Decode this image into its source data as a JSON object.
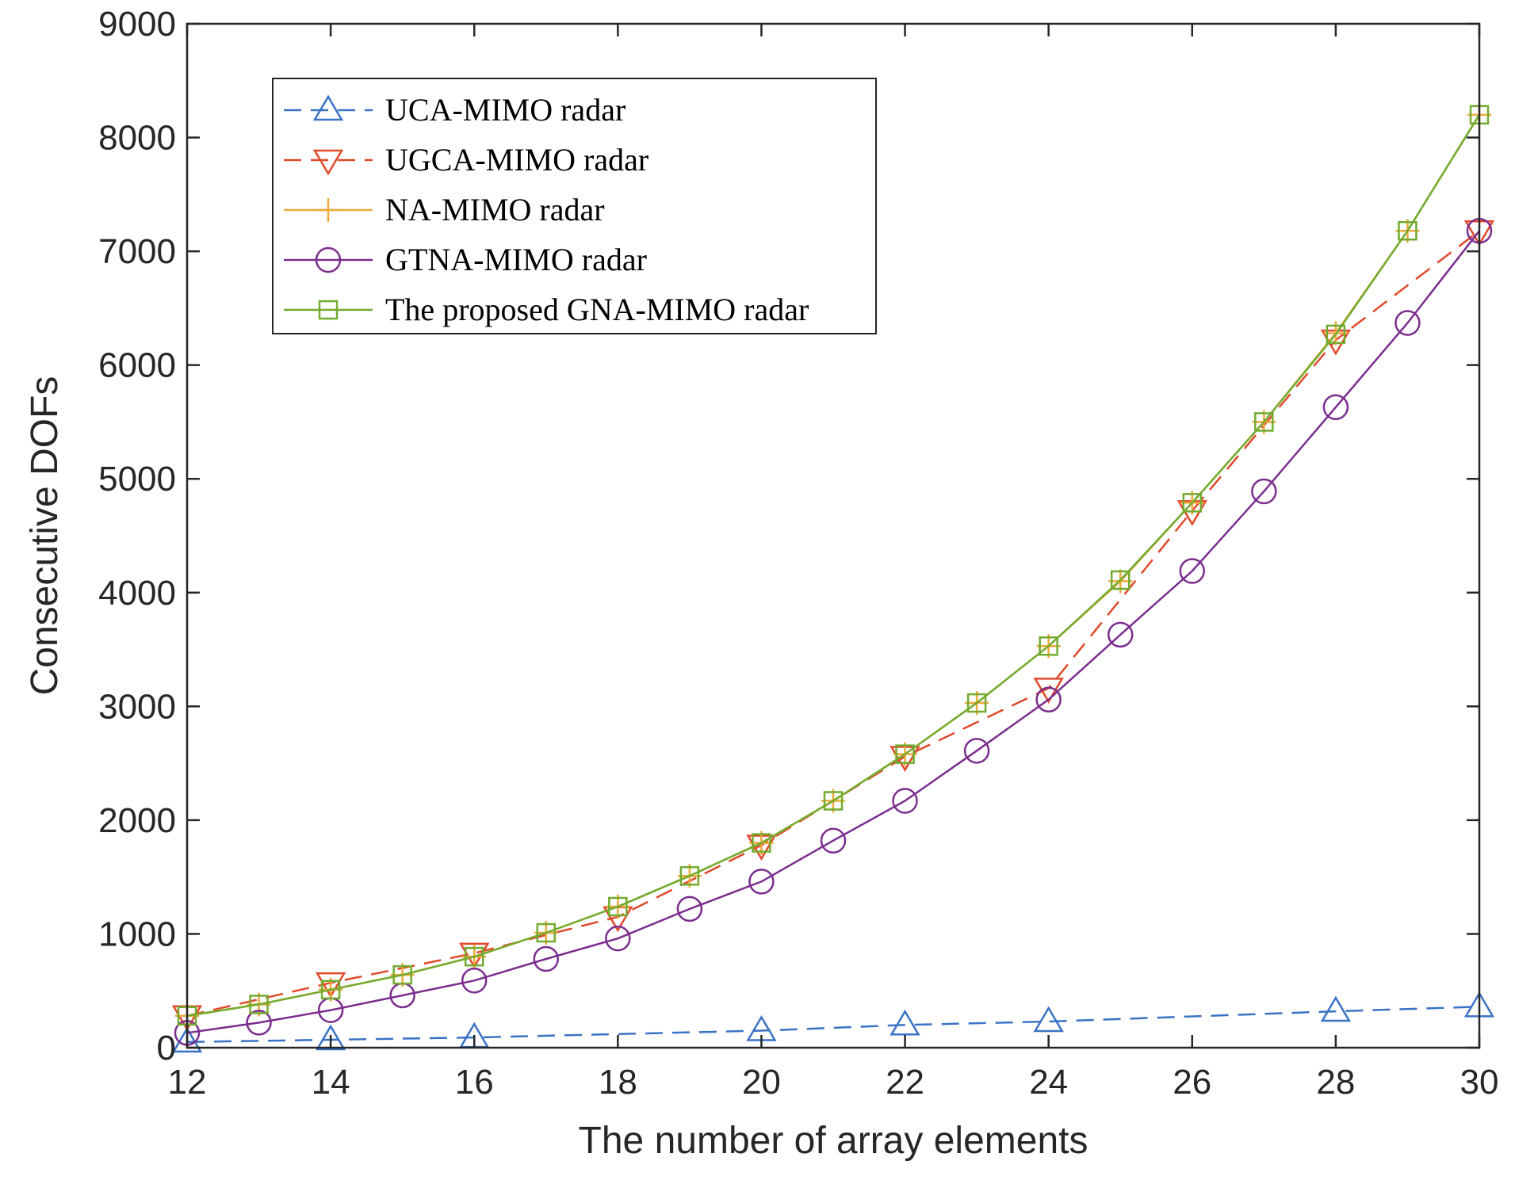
{
  "chart_data": {
    "type": "line",
    "title": "",
    "xlabel": "The number of array elements",
    "ylabel": "Consecutive DOFs",
    "xlim": [
      12,
      30
    ],
    "ylim": [
      0,
      9000
    ],
    "xticks": [
      12,
      14,
      16,
      18,
      20,
      22,
      24,
      26,
      28,
      30
    ],
    "yticks": [
      0,
      1000,
      2000,
      3000,
      4000,
      5000,
      6000,
      7000,
      8000,
      9000
    ],
    "grid": false,
    "legend_position": "top-left",
    "series": [
      {
        "name": "UCA-MIMO radar",
        "color": "#3a72c4",
        "dash": "dashed",
        "marker": "triangle-up",
        "x": [
          12,
          14,
          16,
          20,
          22,
          24,
          28,
          30
        ],
        "y": [
          50,
          70,
          90,
          150,
          200,
          230,
          320,
          360
        ]
      },
      {
        "name": "UGCA-MIMO radar",
        "color": "#e0492a",
        "dash": "dashed",
        "marker": "triangle-down",
        "x": [
          12,
          14,
          16,
          18,
          20,
          22,
          24,
          26,
          28,
          30
        ],
        "y": [
          280,
          570,
          830,
          1150,
          1780,
          2560,
          3160,
          4720,
          6220,
          7180
        ]
      },
      {
        "name": "NA-MIMO radar",
        "color": "#eda93a",
        "dash": "solid",
        "marker": "plus",
        "x": [
          12,
          13,
          14,
          15,
          16,
          17,
          18,
          19,
          20,
          21,
          22,
          23,
          24,
          25,
          26,
          27,
          28,
          29,
          30
        ],
        "y": [
          280,
          380,
          510,
          640,
          800,
          1010,
          1240,
          1510,
          1800,
          2170,
          2580,
          3030,
          3530,
          4100,
          4790,
          5500,
          6280,
          7180,
          8200
        ]
      },
      {
        "name": "GTNA-MIMO radar",
        "color": "#7b2d8e",
        "dash": "solid",
        "marker": "circle",
        "x": [
          12,
          13,
          14,
          15,
          16,
          17,
          18,
          19,
          20,
          21,
          22,
          23,
          24,
          25,
          26,
          27,
          28,
          29,
          30
        ],
        "y": [
          130,
          220,
          330,
          460,
          590,
          780,
          960,
          1220,
          1460,
          1820,
          2170,
          2610,
          3060,
          3630,
          4190,
          4890,
          5630,
          6370,
          7180
        ]
      },
      {
        "name": "The proposed GNA-MIMO radar",
        "color": "#72ab2f",
        "dash": "solid",
        "marker": "square",
        "x": [
          12,
          13,
          14,
          15,
          16,
          17,
          18,
          19,
          20,
          21,
          22,
          23,
          24,
          25,
          26,
          27,
          28,
          29,
          30
        ],
        "y": [
          280,
          380,
          510,
          640,
          800,
          1010,
          1240,
          1510,
          1800,
          2170,
          2580,
          3030,
          3530,
          4110,
          4790,
          5500,
          6270,
          7180,
          8200
        ]
      }
    ]
  }
}
